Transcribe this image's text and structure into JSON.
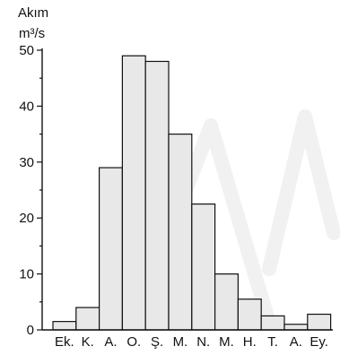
{
  "chart_data": {
    "type": "bar",
    "title": "",
    "ylabel_line1": "Akım",
    "ylabel_line2": "m³/s",
    "xlabel": "",
    "ylim": [
      0,
      50
    ],
    "yticks": [
      0,
      10,
      20,
      30,
      40,
      50
    ],
    "yticks_minor": [
      5,
      15,
      25,
      35,
      45
    ],
    "grid": false,
    "legend": "none",
    "bar_fill": "#e8e8e8",
    "bar_stroke": "#111111",
    "categories": [
      "Ek.",
      "K.",
      "A.",
      "O.",
      "Ş.",
      "M.",
      "N.",
      "M.",
      "H.",
      "T.",
      "A.",
      "Ey."
    ],
    "values": [
      1.5,
      4,
      29,
      49,
      48,
      35,
      22.5,
      10,
      5.5,
      2.5,
      1,
      2.8
    ]
  }
}
